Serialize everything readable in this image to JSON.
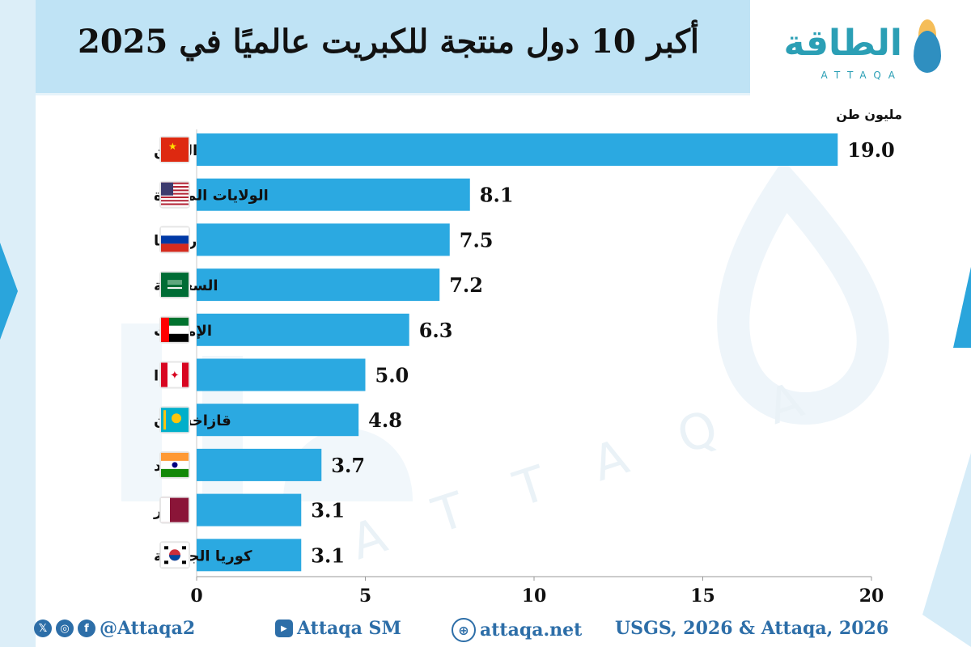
{
  "header": {
    "title": "أكبر 10 دول منتجة للكبريت عالميًا في 2025"
  },
  "logo": {
    "arabic": "الطاقة",
    "latin": "ATTAQA"
  },
  "watermark": {
    "latin": "ATTAQA"
  },
  "chart_data": {
    "type": "bar",
    "orientation": "horizontal",
    "unit_label": "مليون طن",
    "categories": [
      "الصين",
      "الولايات المتحدة",
      "روسيا",
      "السعودية",
      "الإمارات",
      "كندا",
      "قازاخستان",
      "الهند",
      "قطر",
      "كوريا الجنوبية"
    ],
    "values": [
      19.0,
      8.1,
      7.5,
      7.2,
      6.3,
      5.0,
      4.8,
      3.7,
      3.1,
      3.1
    ],
    "value_labels": [
      "19.0",
      "8.1",
      "7.5",
      "7.2",
      "6.3",
      "5.0",
      "4.8",
      "3.7",
      "3.1",
      "3.1"
    ],
    "xlim": [
      0,
      20
    ],
    "xticks": [
      0,
      5,
      10,
      15,
      20
    ],
    "bar_color": "#2ba9e1",
    "flags": [
      "china-flag-icon",
      "usa-flag-icon",
      "russia-flag-icon",
      "saudi-flag-icon",
      "uae-flag-icon",
      "canada-flag-icon",
      "kazakhstan-flag-icon",
      "india-flag-icon",
      "qatar-flag-icon",
      "south-korea-flag-icon"
    ]
  },
  "footer": {
    "social_handle": "@Attaqa2",
    "youtube": "Attaqa SM",
    "website": "attaqa.net",
    "source": "USGS, 2026 & Attaqa, 2026",
    "icons": [
      "x-icon",
      "instagram-icon",
      "facebook-icon",
      "youtube-icon",
      "globe-icon"
    ]
  }
}
